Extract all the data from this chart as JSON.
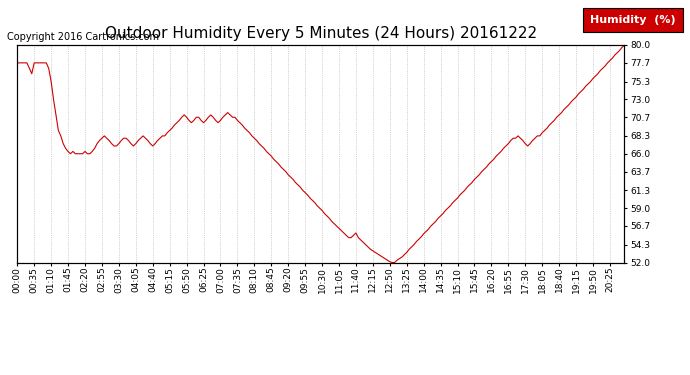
{
  "title": "Outdoor Humidity Every 5 Minutes (24 Hours) 20161222",
  "copyright": "Copyright 2016 Cartronics.com",
  "legend_label": "Humidity  (%)",
  "line_color": "#cc0000",
  "background_color": "#ffffff",
  "grid_color": "#aaaaaa",
  "ylim": [
    52.0,
    80.0
  ],
  "yticks": [
    52.0,
    54.3,
    56.7,
    59.0,
    61.3,
    63.7,
    66.0,
    68.3,
    70.7,
    73.0,
    75.3,
    77.7,
    80.0
  ],
  "humidity_values": [
    77.7,
    77.7,
    77.7,
    77.7,
    77.7,
    77.0,
    76.3,
    77.7,
    77.7,
    77.7,
    77.7,
    77.7,
    77.7,
    77.0,
    75.3,
    73.0,
    71.0,
    69.0,
    68.3,
    67.3,
    66.7,
    66.3,
    66.0,
    66.3,
    66.0,
    66.0,
    66.0,
    66.0,
    66.3,
    66.0,
    66.0,
    66.3,
    66.7,
    67.3,
    67.7,
    68.0,
    68.3,
    68.0,
    67.7,
    67.3,
    67.0,
    67.0,
    67.3,
    67.7,
    68.0,
    68.0,
    67.7,
    67.3,
    67.0,
    67.3,
    67.7,
    68.0,
    68.3,
    68.0,
    67.7,
    67.3,
    67.0,
    67.3,
    67.7,
    68.0,
    68.3,
    68.3,
    68.7,
    69.0,
    69.3,
    69.7,
    70.0,
    70.3,
    70.7,
    71.0,
    70.7,
    70.3,
    70.0,
    70.3,
    70.7,
    70.7,
    70.3,
    70.0,
    70.3,
    70.7,
    71.0,
    70.7,
    70.3,
    70.0,
    70.3,
    70.7,
    71.0,
    71.3,
    71.0,
    70.7,
    70.7,
    70.3,
    70.0,
    69.7,
    69.3,
    69.0,
    68.7,
    68.3,
    68.0,
    67.7,
    67.3,
    67.0,
    66.7,
    66.3,
    66.0,
    65.7,
    65.3,
    65.0,
    64.7,
    64.3,
    64.0,
    63.7,
    63.3,
    63.0,
    62.7,
    62.3,
    62.0,
    61.7,
    61.3,
    61.0,
    60.7,
    60.3,
    60.0,
    59.7,
    59.3,
    59.0,
    58.7,
    58.3,
    58.0,
    57.7,
    57.3,
    57.0,
    56.7,
    56.4,
    56.1,
    55.8,
    55.5,
    55.2,
    55.2,
    55.5,
    55.8,
    55.2,
    54.9,
    54.6,
    54.3,
    54.0,
    53.7,
    53.5,
    53.3,
    53.1,
    52.9,
    52.7,
    52.5,
    52.3,
    52.1,
    52.0,
    52.0,
    52.3,
    52.5,
    52.7,
    53.0,
    53.3,
    53.7,
    54.0,
    54.3,
    54.7,
    55.0,
    55.3,
    55.7,
    56.0,
    56.3,
    56.7,
    57.0,
    57.3,
    57.7,
    58.0,
    58.3,
    58.7,
    59.0,
    59.3,
    59.7,
    60.0,
    60.3,
    60.7,
    61.0,
    61.3,
    61.7,
    62.0,
    62.3,
    62.7,
    63.0,
    63.3,
    63.7,
    64.0,
    64.3,
    64.7,
    65.0,
    65.3,
    65.7,
    66.0,
    66.3,
    66.7,
    67.0,
    67.3,
    67.7,
    68.0,
    68.0,
    68.3,
    68.0,
    67.7,
    67.3,
    67.0,
    67.3,
    67.7,
    68.0,
    68.3,
    68.3,
    68.7,
    69.0,
    69.3,
    69.7,
    70.0,
    70.3,
    70.7,
    71.0,
    71.3,
    71.7,
    72.0,
    72.3,
    72.7,
    73.0,
    73.3,
    73.7,
    74.0,
    74.3,
    74.7,
    75.0,
    75.3,
    75.7,
    76.0,
    76.3,
    76.7,
    77.0,
    77.3,
    77.7,
    78.0,
    78.3,
    78.7,
    79.0,
    79.3,
    79.7,
    80.0
  ],
  "xtick_interval": 7,
  "title_fontsize": 11,
  "tick_fontsize": 6.5,
  "copyright_fontsize": 7,
  "legend_box_color": "#cc0000",
  "legend_text_color": "#ffffff",
  "legend_fontsize": 8
}
